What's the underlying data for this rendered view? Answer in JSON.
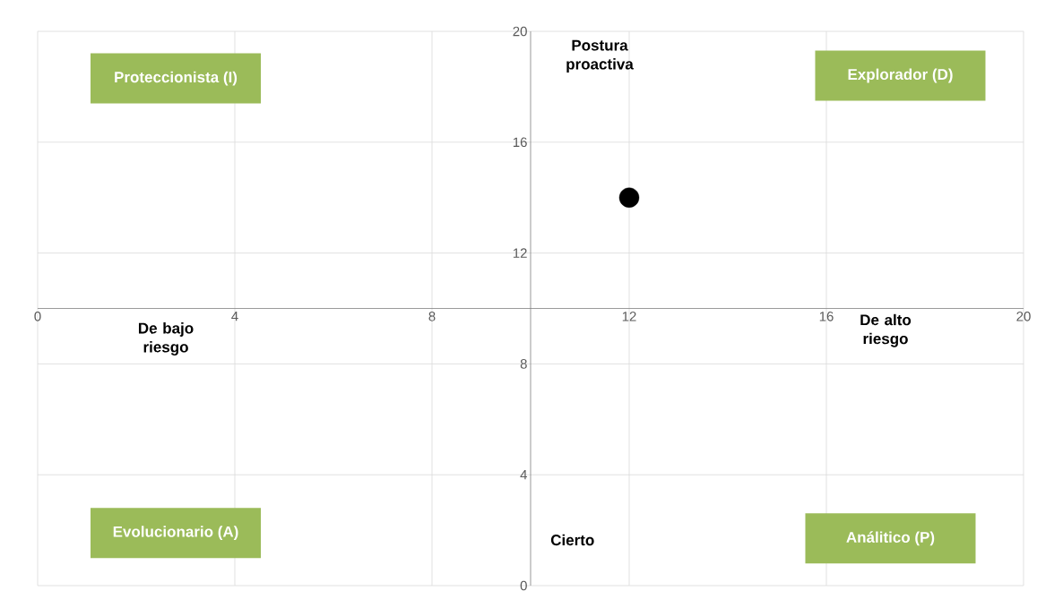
{
  "chart_data": {
    "type": "scatter",
    "x": [
      12
    ],
    "values": [
      14
    ],
    "color": "#000000",
    "marker": "circle",
    "xlim": [
      0,
      20
    ],
    "ylim": [
      0,
      20
    ],
    "xticks": [
      0,
      4,
      8,
      12,
      16,
      20
    ],
    "yticks": [
      0,
      4,
      8,
      12,
      16,
      20
    ],
    "grid": true,
    "annotations": [
      "Proteccionista (I)",
      "Explorador (D)",
      "Evolucionario (A)",
      "Análitico (P)",
      "Postura proactiva",
      "De bajo riesgo",
      "De alto riesgo",
      "Cierto"
    ]
  }
}
